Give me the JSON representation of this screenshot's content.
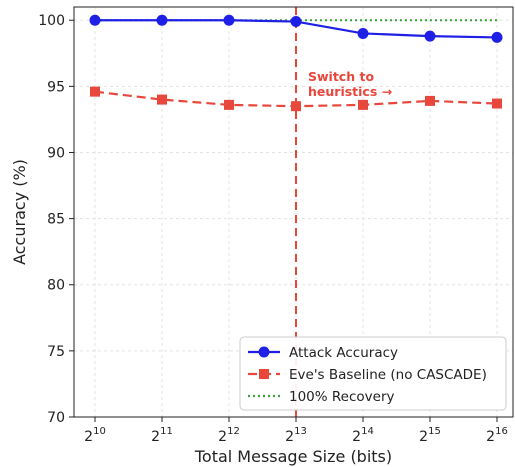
{
  "chart_data": {
    "type": "line",
    "title": "",
    "xlabel": "Total Message Size (bits)",
    "ylabel": "Accuracy (%)",
    "x_tick_labels": [
      {
        "base": "2",
        "exp": "10"
      },
      {
        "base": "2",
        "exp": "11"
      },
      {
        "base": "2",
        "exp": "12"
      },
      {
        "base": "2",
        "exp": "13"
      },
      {
        "base": "2",
        "exp": "14"
      },
      {
        "base": "2",
        "exp": "15"
      },
      {
        "base": "2",
        "exp": "16"
      }
    ],
    "x": [
      1024,
      2048,
      4096,
      8192,
      16384,
      32768,
      65536
    ],
    "x_scale": "log2",
    "ylim": [
      70,
      101
    ],
    "y_ticks": [
      70,
      75,
      80,
      85,
      90,
      95,
      100
    ],
    "grid": true,
    "legend_position": "bottom-right",
    "series": [
      {
        "name": "Attack Accuracy",
        "color": "#1f1fe6",
        "style": "solid",
        "marker": "circle",
        "values": [
          100.0,
          100.0,
          100.0,
          99.9,
          99.0,
          98.8,
          98.7
        ]
      },
      {
        "name": "Eve's Baseline (no CASCADE)",
        "color": "#e8473c",
        "style": "dashed",
        "marker": "square",
        "values": [
          94.6,
          94.0,
          93.6,
          93.5,
          93.6,
          93.9,
          93.7
        ]
      },
      {
        "name": "100% Recovery",
        "color": "#3aa33a",
        "style": "dotted",
        "marker": "none",
        "values": [
          100,
          100,
          100,
          100,
          100,
          100,
          100
        ]
      }
    ],
    "vertical_line": {
      "x": 8192,
      "color": "#e8473c",
      "style": "dashed"
    },
    "annotation": {
      "lines": [
        "Switch to",
        "heuristics →"
      ],
      "color": "#e8473c"
    }
  }
}
